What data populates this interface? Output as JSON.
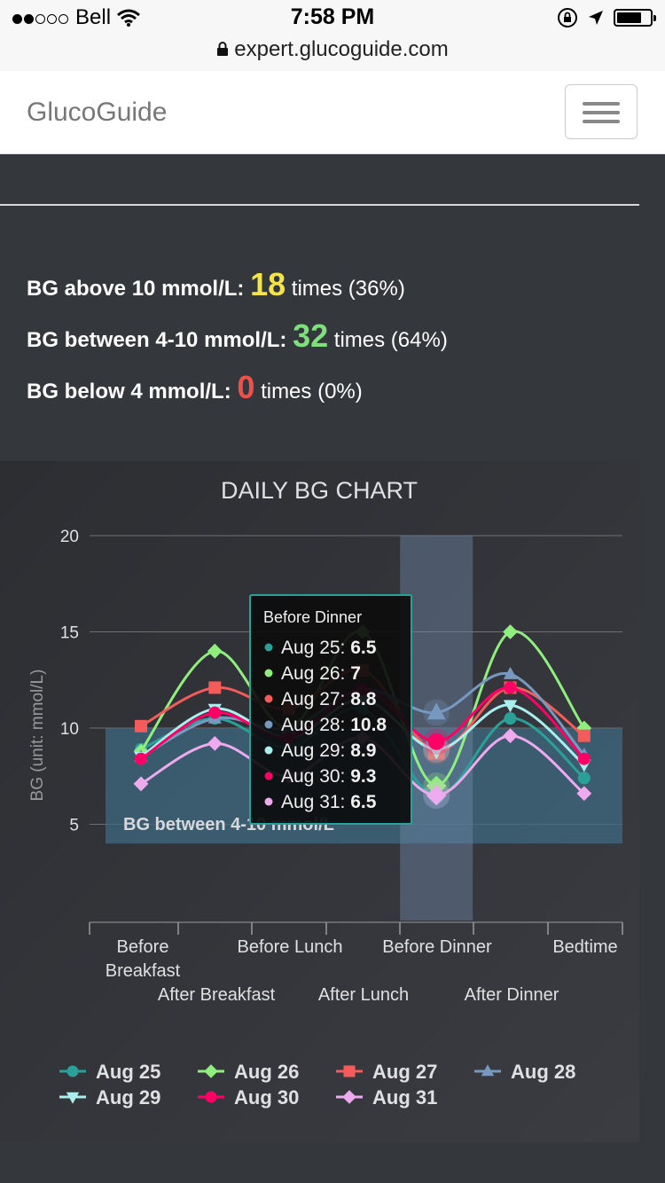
{
  "status_bar": {
    "carrier": "Bell",
    "time": "7:58 PM",
    "url": "expert.glucoguide.com",
    "battery_level": 0.75,
    "signal_bars": 2
  },
  "navbar": {
    "brand": "GlucoGuide",
    "menu_icon": "hamburger-icon"
  },
  "stats": [
    {
      "label": "BG above 10 mmol/L:",
      "count": "18",
      "tail": "times (36%)",
      "color": "#f4e44a"
    },
    {
      "label": "BG between 4-10 mmol/L:",
      "count": "32",
      "tail": "times (64%)",
      "color": "#7ee07a"
    },
    {
      "label": "BG below 4 mmol/L:",
      "count": "0",
      "tail": "times (0%)",
      "color": "#f0504a"
    }
  ],
  "chart_data": {
    "type": "line",
    "title": "DAILY BG CHART",
    "ylabel": "BG (unit: mmol/L)",
    "ylim": [
      0,
      20
    ],
    "yticks": [
      5,
      10,
      15,
      20
    ],
    "categories": [
      "Before Breakfast",
      "After Breakfast",
      "Before Lunch",
      "After Lunch",
      "Before Dinner",
      "After Dinner",
      "Bedtime"
    ],
    "band": {
      "label": "BG between 4-10 mmol/L",
      "from": 4,
      "to": 10
    },
    "highlighted_category": "Before Dinner",
    "series": [
      {
        "name": "Aug 25",
        "color": "#2aa198",
        "marker": "circle",
        "values": [
          8.9,
          10.5,
          9,
          11,
          6.5,
          10.5,
          7.4
        ]
      },
      {
        "name": "Aug 26",
        "color": "#90ee7e",
        "marker": "diamond",
        "values": [
          8.8,
          14,
          10,
          15,
          7,
          15,
          10
        ]
      },
      {
        "name": "Aug 27",
        "color": "#f45b5b",
        "marker": "square",
        "values": [
          10.1,
          12.1,
          11,
          13,
          8.8,
          12.1,
          9.6
        ]
      },
      {
        "name": "Aug 28",
        "color": "#7798bf",
        "marker": "triangle",
        "values": [
          8.5,
          10.5,
          10,
          12,
          10.8,
          12.8,
          8.6
        ]
      },
      {
        "name": "Aug 29",
        "color": "#aaeeee",
        "marker": "triangle-down",
        "values": [
          8.5,
          11,
          9.5,
          11.5,
          8.9,
          11.2,
          8.1
        ]
      },
      {
        "name": "Aug 30",
        "color": "#ff0066",
        "marker": "circle",
        "values": [
          8.4,
          10.8,
          9.5,
          12,
          9.3,
          12.1,
          8.4
        ]
      },
      {
        "name": "Aug 31",
        "color": "#eeaaee",
        "marker": "diamond",
        "values": [
          7.1,
          9.2,
          7.5,
          9.5,
          6.5,
          9.6,
          6.6
        ]
      }
    ],
    "tooltip": {
      "title": "Before Dinner",
      "rows": [
        {
          "label": "Aug 25:",
          "value": "6.5"
        },
        {
          "label": "Aug 26:",
          "value": "7"
        },
        {
          "label": "Aug 27:",
          "value": "8.8"
        },
        {
          "label": "Aug 28:",
          "value": "10.8"
        },
        {
          "label": "Aug 29:",
          "value": "8.9"
        },
        {
          "label": "Aug 30:",
          "value": "9.3"
        },
        {
          "label": "Aug 31:",
          "value": "6.5"
        }
      ]
    },
    "legend_placement": "bottom"
  }
}
